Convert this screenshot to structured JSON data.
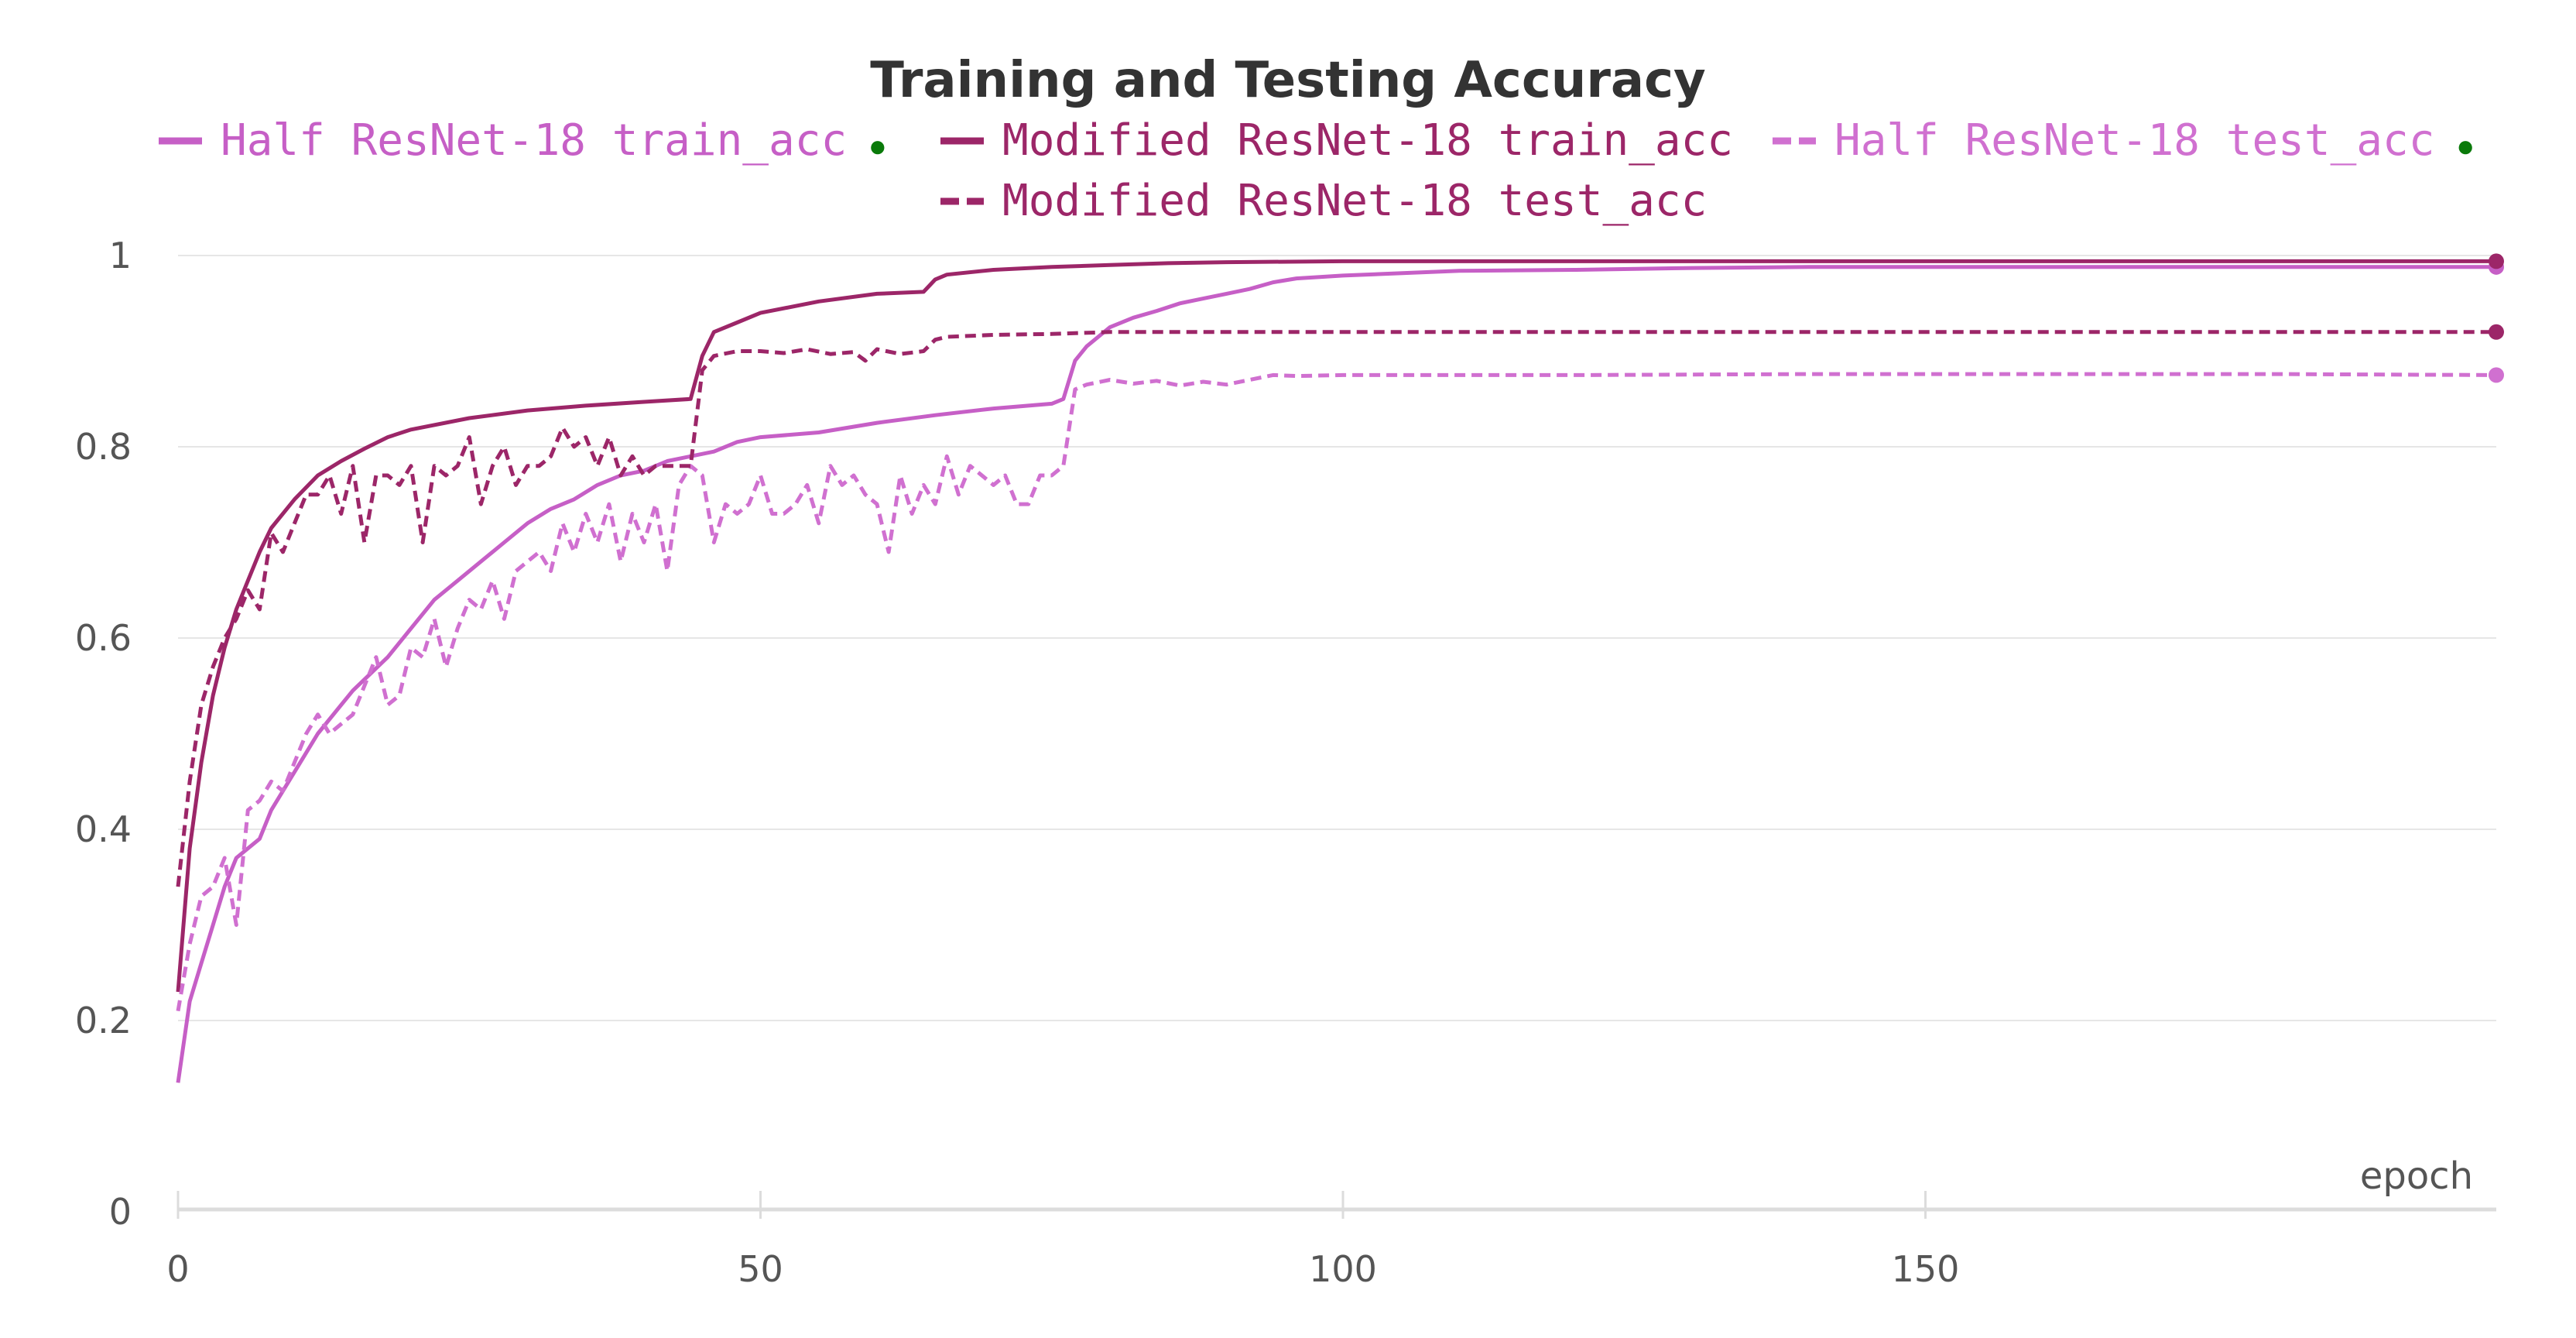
{
  "chart_data": {
    "type": "line",
    "title": "Training and Testing Accuracy",
    "xlabel": "epoch",
    "ylabel": "",
    "xlim": [
      0,
      199
    ],
    "ylim": [
      0,
      1
    ],
    "x_ticks": [
      "0",
      "50",
      "100",
      "150"
    ],
    "y_ticks": [
      "0",
      "0.2",
      "0.4",
      "0.6",
      "0.8",
      "1"
    ],
    "grid": true,
    "legend_position": "top",
    "series": [
      {
        "name": "Half ResNet-18 train_acc",
        "color": "#c65fc6",
        "style": "solid",
        "marker": "●",
        "marker_color": "#0a7a0a",
        "points": [
          [
            0,
            0.135
          ],
          [
            1,
            0.22
          ],
          [
            2,
            0.26
          ],
          [
            3,
            0.3
          ],
          [
            4,
            0.34
          ],
          [
            5,
            0.37
          ],
          [
            6,
            0.38
          ],
          [
            7,
            0.39
          ],
          [
            8,
            0.42
          ],
          [
            10,
            0.46
          ],
          [
            12,
            0.5
          ],
          [
            14,
            0.53
          ],
          [
            15,
            0.545
          ],
          [
            18,
            0.58
          ],
          [
            20,
            0.61
          ],
          [
            22,
            0.64
          ],
          [
            24,
            0.66
          ],
          [
            26,
            0.68
          ],
          [
            28,
            0.7
          ],
          [
            30,
            0.72
          ],
          [
            32,
            0.735
          ],
          [
            34,
            0.745
          ],
          [
            36,
            0.76
          ],
          [
            38,
            0.77
          ],
          [
            40,
            0.775
          ],
          [
            42,
            0.785
          ],
          [
            44,
            0.79
          ],
          [
            46,
            0.795
          ],
          [
            48,
            0.805
          ],
          [
            50,
            0.81
          ],
          [
            55,
            0.815
          ],
          [
            60,
            0.825
          ],
          [
            65,
            0.833
          ],
          [
            70,
            0.84
          ],
          [
            75,
            0.845
          ],
          [
            76,
            0.85
          ],
          [
            77,
            0.89
          ],
          [
            78,
            0.905
          ],
          [
            80,
            0.925
          ],
          [
            82,
            0.935
          ],
          [
            84,
            0.942
          ],
          [
            86,
            0.95
          ],
          [
            88,
            0.955
          ],
          [
            90,
            0.96
          ],
          [
            92,
            0.965
          ],
          [
            94,
            0.972
          ],
          [
            96,
            0.976
          ],
          [
            100,
            0.979
          ],
          [
            110,
            0.984
          ],
          [
            120,
            0.985
          ],
          [
            130,
            0.987
          ],
          [
            140,
            0.988
          ],
          [
            150,
            0.988
          ],
          [
            160,
            0.988
          ],
          [
            170,
            0.988
          ],
          [
            180,
            0.988
          ],
          [
            190,
            0.988
          ],
          [
            199,
            0.988
          ]
        ]
      },
      {
        "name": "Modified ResNet-18 train_acc",
        "color": "#9c2668",
        "style": "solid",
        "marker": "",
        "marker_color": "",
        "points": [
          [
            0,
            0.23
          ],
          [
            1,
            0.38
          ],
          [
            2,
            0.47
          ],
          [
            3,
            0.54
          ],
          [
            4,
            0.59
          ],
          [
            5,
            0.63
          ],
          [
            6,
            0.66
          ],
          [
            7,
            0.69
          ],
          [
            8,
            0.715
          ],
          [
            10,
            0.745
          ],
          [
            12,
            0.77
          ],
          [
            14,
            0.785
          ],
          [
            16,
            0.798
          ],
          [
            18,
            0.81
          ],
          [
            20,
            0.818
          ],
          [
            25,
            0.83
          ],
          [
            30,
            0.838
          ],
          [
            35,
            0.843
          ],
          [
            40,
            0.847
          ],
          [
            44,
            0.85
          ],
          [
            45,
            0.895
          ],
          [
            46,
            0.92
          ],
          [
            48,
            0.93
          ],
          [
            50,
            0.94
          ],
          [
            55,
            0.952
          ],
          [
            60,
            0.96
          ],
          [
            64,
            0.962
          ],
          [
            65,
            0.975
          ],
          [
            66,
            0.98
          ],
          [
            70,
            0.985
          ],
          [
            75,
            0.988
          ],
          [
            80,
            0.99
          ],
          [
            85,
            0.992
          ],
          [
            90,
            0.993
          ],
          [
            100,
            0.994
          ],
          [
            120,
            0.994
          ],
          [
            140,
            0.994
          ],
          [
            160,
            0.994
          ],
          [
            180,
            0.994
          ],
          [
            199,
            0.994
          ]
        ]
      },
      {
        "name": "Half ResNet-18 test_acc",
        "color": "#d070d0",
        "style": "dashed",
        "marker": "●",
        "marker_color": "#0a7a0a",
        "points": [
          [
            0,
            0.21
          ],
          [
            1,
            0.28
          ],
          [
            2,
            0.33
          ],
          [
            3,
            0.34
          ],
          [
            4,
            0.37
          ],
          [
            5,
            0.3
          ],
          [
            6,
            0.42
          ],
          [
            7,
            0.43
          ],
          [
            8,
            0.45
          ],
          [
            9,
            0.44
          ],
          [
            10,
            0.47
          ],
          [
            11,
            0.5
          ],
          [
            12,
            0.52
          ],
          [
            13,
            0.5
          ],
          [
            14,
            0.51
          ],
          [
            15,
            0.52
          ],
          [
            16,
            0.55
          ],
          [
            17,
            0.58
          ],
          [
            18,
            0.53
          ],
          [
            19,
            0.54
          ],
          [
            20,
            0.59
          ],
          [
            21,
            0.58
          ],
          [
            22,
            0.62
          ],
          [
            23,
            0.57
          ],
          [
            24,
            0.61
          ],
          [
            25,
            0.64
          ],
          [
            26,
            0.63
          ],
          [
            27,
            0.66
          ],
          [
            28,
            0.62
          ],
          [
            29,
            0.67
          ],
          [
            30,
            0.68
          ],
          [
            31,
            0.69
          ],
          [
            32,
            0.67
          ],
          [
            33,
            0.72
          ],
          [
            34,
            0.69
          ],
          [
            35,
            0.73
          ],
          [
            36,
            0.7
          ],
          [
            37,
            0.74
          ],
          [
            38,
            0.68
          ],
          [
            39,
            0.73
          ],
          [
            40,
            0.7
          ],
          [
            41,
            0.74
          ],
          [
            42,
            0.67
          ],
          [
            43,
            0.76
          ],
          [
            44,
            0.78
          ],
          [
            45,
            0.77
          ],
          [
            46,
            0.7
          ],
          [
            47,
            0.74
          ],
          [
            48,
            0.73
          ],
          [
            49,
            0.74
          ],
          [
            50,
            0.77
          ],
          [
            51,
            0.73
          ],
          [
            52,
            0.73
          ],
          [
            53,
            0.74
          ],
          [
            54,
            0.76
          ],
          [
            55,
            0.72
          ],
          [
            56,
            0.78
          ],
          [
            57,
            0.76
          ],
          [
            58,
            0.77
          ],
          [
            59,
            0.75
          ],
          [
            60,
            0.74
          ],
          [
            61,
            0.69
          ],
          [
            62,
            0.77
          ],
          [
            63,
            0.73
          ],
          [
            64,
            0.76
          ],
          [
            65,
            0.74
          ],
          [
            66,
            0.79
          ],
          [
            67,
            0.75
          ],
          [
            68,
            0.78
          ],
          [
            69,
            0.77
          ],
          [
            70,
            0.76
          ],
          [
            71,
            0.77
          ],
          [
            72,
            0.74
          ],
          [
            73,
            0.74
          ],
          [
            74,
            0.77
          ],
          [
            75,
            0.77
          ],
          [
            76,
            0.78
          ],
          [
            77,
            0.86
          ],
          [
            78,
            0.865
          ],
          [
            80,
            0.87
          ],
          [
            82,
            0.866
          ],
          [
            84,
            0.869
          ],
          [
            86,
            0.864
          ],
          [
            88,
            0.868
          ],
          [
            90,
            0.865
          ],
          [
            92,
            0.87
          ],
          [
            94,
            0.875
          ],
          [
            96,
            0.874
          ],
          [
            100,
            0.875
          ],
          [
            120,
            0.875
          ],
          [
            140,
            0.876
          ],
          [
            160,
            0.876
          ],
          [
            180,
            0.876
          ],
          [
            199,
            0.875
          ]
        ]
      },
      {
        "name": "Modified ResNet-18 test_acc",
        "color": "#9c2668",
        "style": "dashed",
        "marker": "",
        "marker_color": "",
        "points": [
          [
            0,
            0.34
          ],
          [
            1,
            0.45
          ],
          [
            2,
            0.53
          ],
          [
            3,
            0.57
          ],
          [
            4,
            0.6
          ],
          [
            5,
            0.62
          ],
          [
            6,
            0.65
          ],
          [
            7,
            0.63
          ],
          [
            8,
            0.71
          ],
          [
            9,
            0.69
          ],
          [
            10,
            0.72
          ],
          [
            11,
            0.75
          ],
          [
            12,
            0.75
          ],
          [
            13,
            0.77
          ],
          [
            14,
            0.73
          ],
          [
            15,
            0.78
          ],
          [
            16,
            0.7
          ],
          [
            17,
            0.77
          ],
          [
            18,
            0.77
          ],
          [
            19,
            0.76
          ],
          [
            20,
            0.78
          ],
          [
            21,
            0.7
          ],
          [
            22,
            0.78
          ],
          [
            23,
            0.77
          ],
          [
            24,
            0.78
          ],
          [
            25,
            0.81
          ],
          [
            26,
            0.74
          ],
          [
            27,
            0.78
          ],
          [
            28,
            0.8
          ],
          [
            29,
            0.76
          ],
          [
            30,
            0.78
          ],
          [
            31,
            0.78
          ],
          [
            32,
            0.79
          ],
          [
            33,
            0.82
          ],
          [
            34,
            0.8
          ],
          [
            35,
            0.81
          ],
          [
            36,
            0.78
          ],
          [
            37,
            0.81
          ],
          [
            38,
            0.77
          ],
          [
            39,
            0.79
          ],
          [
            40,
            0.77
          ],
          [
            41,
            0.78
          ],
          [
            42,
            0.78
          ],
          [
            43,
            0.78
          ],
          [
            44,
            0.78
          ],
          [
            45,
            0.88
          ],
          [
            46,
            0.895
          ],
          [
            48,
            0.9
          ],
          [
            50,
            0.9
          ],
          [
            52,
            0.898
          ],
          [
            54,
            0.902
          ],
          [
            56,
            0.897
          ],
          [
            58,
            0.899
          ],
          [
            59,
            0.89
          ],
          [
            60,
            0.902
          ],
          [
            62,
            0.897
          ],
          [
            64,
            0.9
          ],
          [
            65,
            0.912
          ],
          [
            66,
            0.915
          ],
          [
            70,
            0.917
          ],
          [
            75,
            0.918
          ],
          [
            80,
            0.92
          ],
          [
            90,
            0.92
          ],
          [
            100,
            0.92
          ],
          [
            120,
            0.92
          ],
          [
            140,
            0.92
          ],
          [
            160,
            0.92
          ],
          [
            180,
            0.92
          ],
          [
            199,
            0.92
          ]
        ]
      }
    ]
  }
}
